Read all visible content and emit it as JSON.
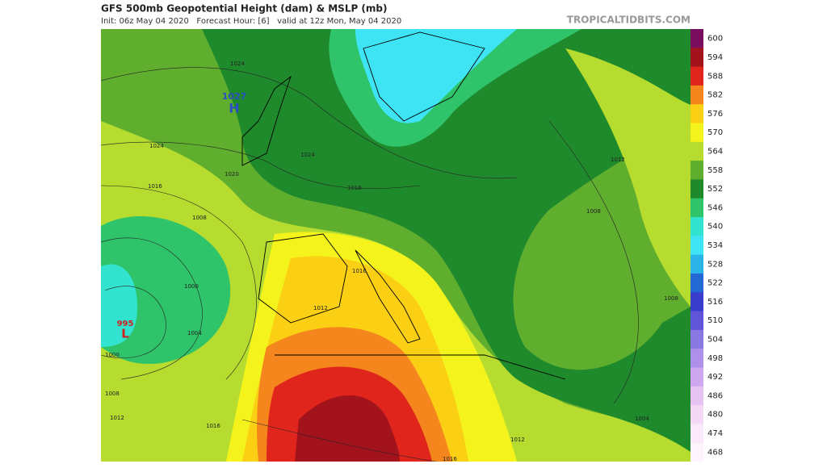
{
  "header": {
    "title": "GFS 500mb Geopotential Height (dam) & MSLP (mb)",
    "subtitle": "Init: 06z May 04 2020   Forecast Hour: [6]   valid at 12z Mon, May 04 2020",
    "brand": "TROPICALTIDBITS.COM"
  },
  "map": {
    "high": {
      "pressure": "1027",
      "letter": "H"
    },
    "low": {
      "pressure": "995",
      "letter": "L"
    },
    "isobar_labels": [
      "1024",
      "1024",
      "1016",
      "1008",
      "1000",
      "1004",
      "1000",
      "1008",
      "1012",
      "1016",
      "1020",
      "1024",
      "1016",
      "1012",
      "1016",
      "1012",
      "1008",
      "1012",
      "1008",
      "1004",
      "1016"
    ]
  },
  "legend": [
    {
      "label": "600",
      "color": "#7b0d5e"
    },
    {
      "label": "594",
      "color": "#a3131b"
    },
    {
      "label": "588",
      "color": "#e0261c"
    },
    {
      "label": "582",
      "color": "#f4861d"
    },
    {
      "label": "576",
      "color": "#fbcf13"
    },
    {
      "label": "570",
      "color": "#f4f41c"
    },
    {
      "label": "564",
      "color": "#b5dc2e"
    },
    {
      "label": "558",
      "color": "#5fae2e"
    },
    {
      "label": "552",
      "color": "#1f8a2c"
    },
    {
      "label": "546",
      "color": "#2fc46a"
    },
    {
      "label": "540",
      "color": "#32e3cf"
    },
    {
      "label": "534",
      "color": "#3fe4f4"
    },
    {
      "label": "528",
      "color": "#2cb4e8"
    },
    {
      "label": "522",
      "color": "#2468d4"
    },
    {
      "label": "516",
      "color": "#3a3ccc"
    },
    {
      "label": "510",
      "color": "#6054d8"
    },
    {
      "label": "504",
      "color": "#8a78e2"
    },
    {
      "label": "498",
      "color": "#ae90ea"
    },
    {
      "label": "492",
      "color": "#cda8f0"
    },
    {
      "label": "486",
      "color": "#e6c2f2"
    },
    {
      "label": "480",
      "color": "#f3d9f5"
    },
    {
      "label": "474",
      "color": "#f9e9fa"
    },
    {
      "label": "468",
      "color": "#fdf4fd"
    }
  ]
}
